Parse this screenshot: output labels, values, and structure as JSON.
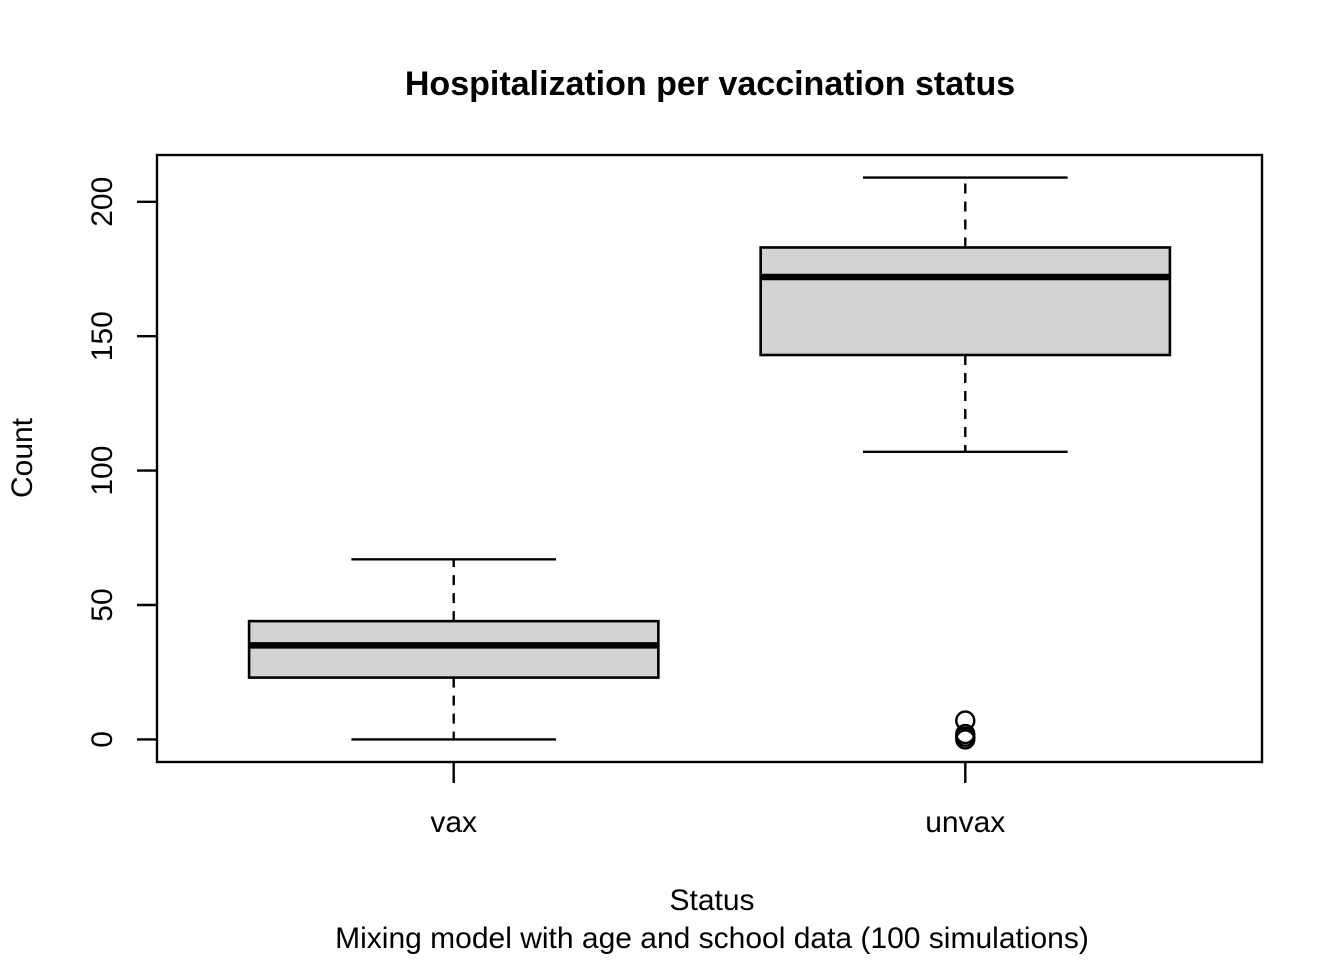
{
  "chart_data": {
    "type": "boxplot",
    "title": "Hospitalization per vaccination status",
    "xlabel": "Status",
    "ylabel": "Count",
    "subtitle": "Mixing model with age and school data (100 simulations)",
    "categories": [
      "vax",
      "unvax"
    ],
    "yticks": [
      0,
      50,
      100,
      150,
      200
    ],
    "ylim": [
      -8.4,
      217.4
    ],
    "xlim": [
      0.42,
      2.58
    ],
    "grid": false,
    "legend": "none",
    "series": [
      {
        "name": "vax",
        "x": 1,
        "whisker_low": 0,
        "q1": 23,
        "median": 35,
        "q3": 44,
        "whisker_high": 67,
        "outliers": []
      },
      {
        "name": "unvax",
        "x": 2,
        "whisker_low": 107,
        "q1": 143,
        "median": 172,
        "q3": 183,
        "whisker_high": 209,
        "outliers": [
          7,
          2,
          1,
          0
        ]
      }
    ],
    "colors": {
      "box_fill": "#d3d3d3",
      "line": "#000000",
      "background": "#ffffff"
    }
  }
}
